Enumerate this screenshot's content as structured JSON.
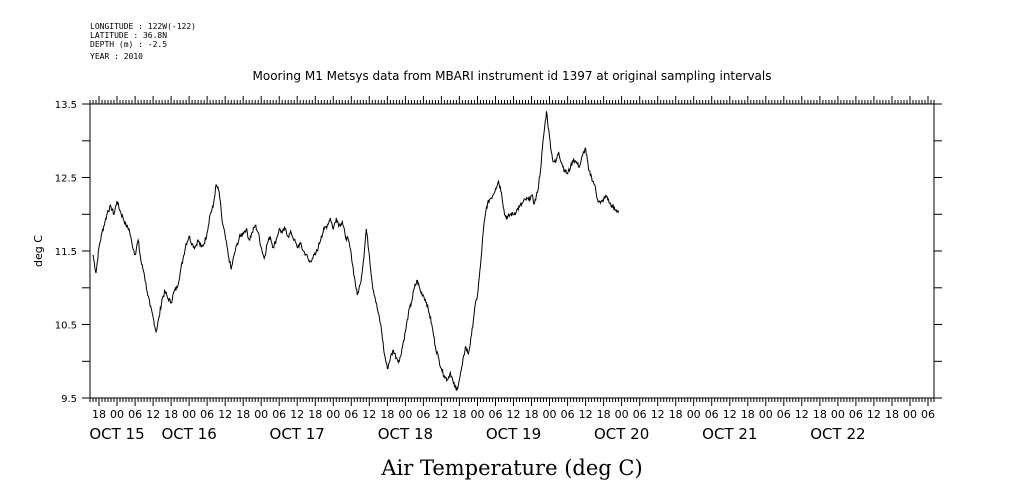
{
  "header_info": [
    "LONGITUDE : 122W(-122)",
    "LATITUDE : 36.8N",
    "DEPTH (m) : -2.5",
    "YEAR : 2010"
  ],
  "chart_data": {
    "type": "line",
    "title": "Mooring M1 Metsys data from MBARI instrument id 1397 at original sampling intervals",
    "xlabel": "Air Temperature (deg C)",
    "ylabel": "deg C",
    "ylim": [
      9.5,
      13.5
    ],
    "yticks": [
      {
        "v": 9.5,
        "label": "9.5"
      },
      {
        "v": 10.5,
        "label": "10.5"
      },
      {
        "v": 11.5,
        "label": "11.5"
      },
      {
        "v": 12.5,
        "label": "12.5"
      },
      {
        "v": 13.5,
        "label": "13.5"
      }
    ],
    "x_unit": "hours since 2010-10-15 00:00",
    "xlim": [
      -9,
      272
    ],
    "hour_ticks": [
      {
        "h": -6,
        "label": "18"
      },
      {
        "h": 0,
        "label": "00"
      },
      {
        "h": 6,
        "label": "06"
      },
      {
        "h": 12,
        "label": "12"
      },
      {
        "h": 18,
        "label": "18"
      },
      {
        "h": 24,
        "label": "00"
      },
      {
        "h": 30,
        "label": "06"
      },
      {
        "h": 36,
        "label": "12"
      },
      {
        "h": 42,
        "label": "18"
      },
      {
        "h": 48,
        "label": "00"
      },
      {
        "h": 54,
        "label": "06"
      },
      {
        "h": 60,
        "label": "12"
      },
      {
        "h": 66,
        "label": "18"
      },
      {
        "h": 72,
        "label": "00"
      },
      {
        "h": 78,
        "label": "06"
      },
      {
        "h": 84,
        "label": "12"
      },
      {
        "h": 90,
        "label": "18"
      },
      {
        "h": 96,
        "label": "00"
      },
      {
        "h": 102,
        "label": "06"
      },
      {
        "h": 108,
        "label": "12"
      },
      {
        "h": 114,
        "label": "18"
      },
      {
        "h": 120,
        "label": "00"
      },
      {
        "h": 126,
        "label": "06"
      },
      {
        "h": 132,
        "label": "12"
      },
      {
        "h": 138,
        "label": "18"
      },
      {
        "h": 144,
        "label": "00"
      },
      {
        "h": 150,
        "label": "06"
      },
      {
        "h": 156,
        "label": "12"
      },
      {
        "h": 162,
        "label": "18"
      },
      {
        "h": 168,
        "label": "00"
      },
      {
        "h": 174,
        "label": "06"
      },
      {
        "h": 180,
        "label": "12"
      },
      {
        "h": 186,
        "label": "18"
      },
      {
        "h": 192,
        "label": "00"
      },
      {
        "h": 198,
        "label": "06"
      },
      {
        "h": 204,
        "label": "12"
      },
      {
        "h": 210,
        "label": "18"
      },
      {
        "h": 216,
        "label": "00"
      },
      {
        "h": 222,
        "label": "06"
      },
      {
        "h": 228,
        "label": "12"
      },
      {
        "h": 234,
        "label": "18"
      },
      {
        "h": 240,
        "label": "00"
      },
      {
        "h": 246,
        "label": "06"
      },
      {
        "h": 252,
        "label": "12"
      },
      {
        "h": 258,
        "label": "18"
      },
      {
        "h": 264,
        "label": "00"
      },
      {
        "h": 270,
        "label": "06"
      }
    ],
    "date_labels": [
      {
        "h": 0,
        "label": "OCT 15"
      },
      {
        "h": 24,
        "label": "OCT 16"
      },
      {
        "h": 60,
        "label": "OCT 17"
      },
      {
        "h": 96,
        "label": "OCT 18"
      },
      {
        "h": 132,
        "label": "OCT 19"
      },
      {
        "h": 168,
        "label": "OCT 20"
      },
      {
        "h": 204,
        "label": "OCT 21"
      },
      {
        "h": 240,
        "label": "OCT 22"
      }
    ],
    "series": [
      {
        "values": [
          [
            -8,
            11.45
          ],
          [
            -7,
            11.2
          ],
          [
            -6,
            11.55
          ],
          [
            -5,
            11.75
          ],
          [
            -4,
            11.9
          ],
          [
            -3,
            12.05
          ],
          [
            -2,
            12.1
          ],
          [
            -1,
            12.0
          ],
          [
            0,
            12.18
          ],
          [
            1,
            12.05
          ],
          [
            2,
            11.95
          ],
          [
            3,
            11.85
          ],
          [
            4,
            11.8
          ],
          [
            5,
            11.6
          ],
          [
            6,
            11.45
          ],
          [
            7,
            11.65
          ],
          [
            8,
            11.35
          ],
          [
            9,
            11.2
          ],
          [
            10,
            10.95
          ],
          [
            11,
            10.75
          ],
          [
            12,
            10.6
          ],
          [
            13,
            10.4
          ],
          [
            14,
            10.6
          ],
          [
            15,
            10.85
          ],
          [
            16,
            10.95
          ],
          [
            17,
            10.85
          ],
          [
            18,
            10.8
          ],
          [
            19,
            10.95
          ],
          [
            20,
            11.0
          ],
          [
            21,
            11.2
          ],
          [
            22,
            11.4
          ],
          [
            23,
            11.6
          ],
          [
            24,
            11.7
          ],
          [
            25,
            11.6
          ],
          [
            26,
            11.55
          ],
          [
            27,
            11.65
          ],
          [
            28,
            11.55
          ],
          [
            29,
            11.6
          ],
          [
            30,
            11.75
          ],
          [
            31,
            12.0
          ],
          [
            32,
            12.1
          ],
          [
            33,
            12.4
          ],
          [
            34,
            12.3
          ],
          [
            35,
            11.9
          ],
          [
            36,
            11.7
          ],
          [
            37,
            11.45
          ],
          [
            38,
            11.25
          ],
          [
            39,
            11.45
          ],
          [
            40,
            11.6
          ],
          [
            41,
            11.7
          ],
          [
            42,
            11.75
          ],
          [
            43,
            11.8
          ],
          [
            44,
            11.65
          ],
          [
            45,
            11.75
          ],
          [
            46,
            11.85
          ],
          [
            47,
            11.75
          ],
          [
            48,
            11.55
          ],
          [
            49,
            11.4
          ],
          [
            50,
            11.6
          ],
          [
            51,
            11.7
          ],
          [
            52,
            11.55
          ],
          [
            53,
            11.65
          ],
          [
            54,
            11.8
          ],
          [
            55,
            11.75
          ],
          [
            56,
            11.8
          ],
          [
            57,
            11.7
          ],
          [
            58,
            11.75
          ],
          [
            59,
            11.65
          ],
          [
            60,
            11.55
          ],
          [
            61,
            11.6
          ],
          [
            62,
            11.5
          ],
          [
            63,
            11.45
          ],
          [
            64,
            11.35
          ],
          [
            65,
            11.4
          ],
          [
            66,
            11.45
          ],
          [
            67,
            11.55
          ],
          [
            68,
            11.7
          ],
          [
            69,
            11.8
          ],
          [
            70,
            11.85
          ],
          [
            71,
            11.95
          ],
          [
            72,
            11.8
          ],
          [
            73,
            11.95
          ],
          [
            74,
            11.85
          ],
          [
            75,
            11.9
          ],
          [
            76,
            11.7
          ],
          [
            77,
            11.65
          ],
          [
            78,
            11.45
          ],
          [
            79,
            11.15
          ],
          [
            80,
            10.9
          ],
          [
            81,
            11.05
          ],
          [
            82,
            11.35
          ],
          [
            83,
            11.8
          ],
          [
            84,
            11.45
          ],
          [
            85,
            11.05
          ],
          [
            86,
            10.85
          ],
          [
            87,
            10.65
          ],
          [
            88,
            10.45
          ],
          [
            89,
            10.1
          ],
          [
            90,
            9.9
          ],
          [
            91,
            10.05
          ],
          [
            92,
            10.15
          ],
          [
            93,
            10.05
          ],
          [
            94,
            10.0
          ],
          [
            95,
            10.2
          ],
          [
            96,
            10.4
          ],
          [
            97,
            10.65
          ],
          [
            98,
            10.8
          ],
          [
            99,
            11.0
          ],
          [
            100,
            11.1
          ],
          [
            101,
            10.95
          ],
          [
            102,
            10.9
          ],
          [
            103,
            10.8
          ],
          [
            104,
            10.65
          ],
          [
            105,
            10.45
          ],
          [
            106,
            10.2
          ],
          [
            107,
            10.05
          ],
          [
            108,
            9.9
          ],
          [
            109,
            9.8
          ],
          [
            110,
            9.75
          ],
          [
            111,
            9.85
          ],
          [
            112,
            9.7
          ],
          [
            113,
            9.6
          ],
          [
            114,
            9.75
          ],
          [
            115,
            9.95
          ],
          [
            116,
            10.2
          ],
          [
            117,
            10.1
          ],
          [
            118,
            10.35
          ],
          [
            119,
            10.7
          ],
          [
            120,
            10.9
          ],
          [
            121,
            11.3
          ],
          [
            122,
            11.8
          ],
          [
            123,
            12.1
          ],
          [
            124,
            12.2
          ],
          [
            125,
            12.25
          ],
          [
            126,
            12.35
          ],
          [
            127,
            12.45
          ],
          [
            128,
            12.3
          ],
          [
            129,
            12.0
          ],
          [
            130,
            11.95
          ],
          [
            131,
            12.0
          ],
          [
            132,
            12.0
          ],
          [
            133,
            12.05
          ],
          [
            134,
            12.1
          ],
          [
            135,
            12.15
          ],
          [
            136,
            12.2
          ],
          [
            137,
            12.2
          ],
          [
            138,
            12.25
          ],
          [
            139,
            12.15
          ],
          [
            140,
            12.3
          ],
          [
            141,
            12.6
          ],
          [
            142,
            13.05
          ],
          [
            143,
            13.4
          ],
          [
            144,
            13.05
          ],
          [
            145,
            12.75
          ],
          [
            146,
            12.7
          ],
          [
            147,
            12.85
          ],
          [
            148,
            12.7
          ],
          [
            149,
            12.6
          ],
          [
            150,
            12.55
          ],
          [
            151,
            12.65
          ],
          [
            152,
            12.75
          ],
          [
            153,
            12.7
          ],
          [
            154,
            12.65
          ],
          [
            155,
            12.8
          ],
          [
            156,
            12.9
          ],
          [
            157,
            12.6
          ],
          [
            158,
            12.5
          ],
          [
            159,
            12.4
          ],
          [
            160,
            12.2
          ],
          [
            161,
            12.15
          ],
          [
            162,
            12.2
          ],
          [
            163,
            12.25
          ],
          [
            164,
            12.15
          ],
          [
            165,
            12.1
          ],
          [
            166,
            12.05
          ],
          [
            167,
            12.05
          ]
        ]
      }
    ]
  }
}
